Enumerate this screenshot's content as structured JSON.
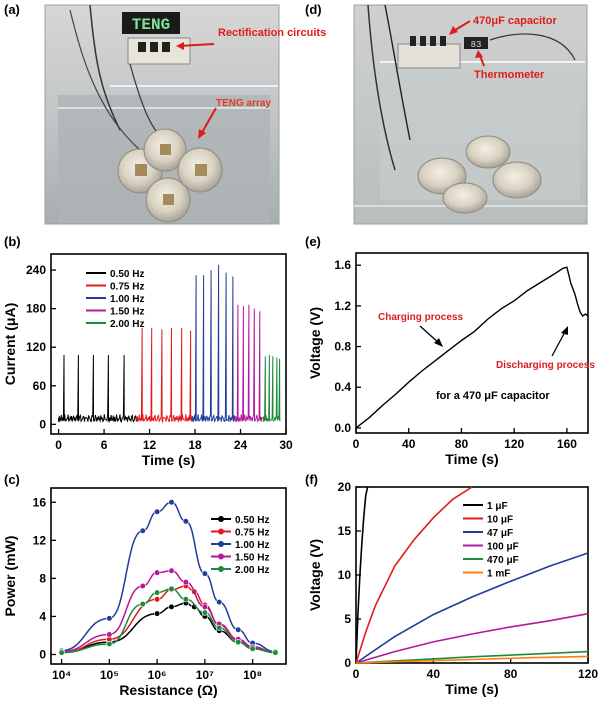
{
  "panels": {
    "a": {
      "label": "(a)",
      "annotations": [
        "Rectification circuits",
        "TENG array"
      ],
      "display_text": "TENG"
    },
    "d": {
      "label": "(d)",
      "annotations": [
        "470μF capacitor",
        "Thermometer"
      ],
      "display_text": "83"
    },
    "b": {
      "label": "(b)"
    },
    "c": {
      "label": "(c)"
    },
    "e": {
      "label": "(e)"
    },
    "f": {
      "label": "(f)"
    }
  },
  "chart_data": [
    {
      "id": "b",
      "type": "line",
      "title": "",
      "xlabel": "Time (s)",
      "ylabel": "Current (μA)",
      "xlim": [
        -1,
        30
      ],
      "ylim": [
        -15,
        265
      ],
      "xticks": [
        "0",
        "6",
        "12",
        "18",
        "24",
        "30"
      ],
      "yticks": [
        "0",
        "60",
        "120",
        "180",
        "240"
      ],
      "xtick_values": [
        0,
        6,
        12,
        18,
        24,
        30
      ],
      "ytick_values": [
        0,
        60,
        120,
        180,
        240
      ],
      "series": [
        {
          "name": "0.50 Hz",
          "color": "#000000",
          "t_start": 0.0,
          "t_end": 10.3,
          "peak_times": [
            0.7,
            2.6,
            4.6,
            6.6,
            8.6
          ],
          "peak_values": [
            108,
            108,
            108,
            108,
            108
          ]
        },
        {
          "name": "0.75 Hz",
          "color": "#e31a1c",
          "t_start": 10.3,
          "t_end": 17.6,
          "peak_times": [
            11.0,
            12.3,
            13.6,
            14.9,
            16.2,
            17.4
          ],
          "peak_values": [
            150,
            150,
            148,
            150,
            150,
            146
          ]
        },
        {
          "name": "1.00 Hz",
          "color": "#1f3d99",
          "t_start": 17.6,
          "t_end": 23.3,
          "peak_times": [
            18.1,
            19.1,
            20.1,
            21.1,
            22.1,
            23.0
          ],
          "peak_values": [
            232,
            232,
            240,
            248,
            236,
            230
          ]
        },
        {
          "name": "1.50 Hz",
          "color": "#b5179e",
          "t_start": 23.3,
          "t_end": 27.0,
          "peak_times": [
            23.7,
            24.4,
            25.1,
            25.8,
            26.5
          ],
          "peak_values": [
            186,
            184,
            186,
            180,
            176
          ]
        },
        {
          "name": "2.00 Hz",
          "color": "#1e8a3c",
          "t_start": 27.0,
          "t_end": 29.3,
          "peak_times": [
            27.3,
            27.8,
            28.3,
            28.8,
            29.2
          ],
          "peak_values": [
            106,
            108,
            106,
            104,
            102
          ]
        }
      ]
    },
    {
      "id": "c",
      "type": "line",
      "xscale": "log",
      "title": "",
      "xlabel": "Resistance (Ω)",
      "ylabel": "Power (mW)",
      "xlim": [
        6000,
        500000000
      ],
      "ylim": [
        -1,
        17.5
      ],
      "xticks": [
        "10⁴",
        "10⁵",
        "10⁶",
        "10⁷",
        "10⁸"
      ],
      "xtick_values": [
        10000,
        100000,
        1000000,
        10000000,
        100000000
      ],
      "yticks": [
        "0",
        "4",
        "8",
        "12",
        "16"
      ],
      "ytick_values": [
        0,
        4,
        8,
        12,
        16
      ],
      "series": [
        {
          "name": "0.50 Hz",
          "color": "#000000",
          "x": [
            10000,
            100000,
            1000000,
            2000000,
            4000000,
            6000000,
            10000000,
            20000000,
            50000000,
            100000000,
            300000000
          ],
          "y": [
            0.2,
            1.3,
            4.3,
            5.0,
            5.4,
            5.0,
            4.0,
            2.5,
            1.3,
            0.6,
            0.2
          ]
        },
        {
          "name": "0.75 Hz",
          "color": "#e31a1c",
          "x": [
            10000,
            100000,
            1000000,
            2000000,
            4000000,
            6000000,
            10000000,
            20000000,
            50000000,
            100000000,
            300000000
          ],
          "y": [
            0.2,
            1.6,
            5.8,
            6.8,
            7.2,
            6.6,
            5.2,
            3.1,
            1.5,
            0.7,
            0.2
          ]
        },
        {
          "name": "1.00 Hz",
          "color": "#1f3d99",
          "x": [
            10000,
            100000,
            500000,
            1000000,
            2000000,
            4000000,
            10000000,
            20000000,
            50000000,
            100000000,
            300000000
          ],
          "y": [
            0.4,
            3.8,
            13.0,
            15.0,
            16.0,
            14.0,
            8.5,
            5.5,
            2.6,
            1.2,
            0.3
          ]
        },
        {
          "name": "1.50 Hz",
          "color": "#b5179e",
          "x": [
            10000,
            100000,
            500000,
            1000000,
            2000000,
            4000000,
            10000000,
            20000000,
            50000000,
            100000000,
            300000000
          ],
          "y": [
            0.3,
            2.1,
            7.2,
            8.6,
            8.8,
            7.6,
            5.0,
            3.2,
            1.6,
            0.8,
            0.2
          ]
        },
        {
          "name": "2.00 Hz",
          "color": "#1e8a3c",
          "x": [
            10000,
            100000,
            500000,
            1000000,
            2000000,
            4000000,
            10000000,
            20000000,
            50000000,
            100000000,
            300000000
          ],
          "y": [
            0.2,
            1.1,
            5.3,
            6.5,
            6.9,
            5.8,
            4.4,
            2.8,
            1.3,
            0.6,
            0.2
          ]
        }
      ]
    },
    {
      "id": "e",
      "type": "line",
      "title": "",
      "xlabel": "Time (s)",
      "ylabel": "Voltage (V)",
      "xlim": [
        0,
        176
      ],
      "ylim": [
        -0.05,
        1.72
      ],
      "xticks": [
        "0",
        "40",
        "80",
        "120",
        "160"
      ],
      "xtick_values": [
        0,
        40,
        80,
        120,
        160
      ],
      "yticks": [
        "0.0",
        "0.4",
        "0.8",
        "1.2",
        "1.6"
      ],
      "ytick_values": [
        0,
        0.4,
        0.8,
        1.2,
        1.6
      ],
      "annotations": [
        "Charging process",
        "Discharging process"
      ],
      "note": "for a 470 μF capacitor",
      "series": [
        {
          "name": "470 μF",
          "color": "#000000",
          "x": [
            0,
            10,
            20,
            30,
            40,
            50,
            60,
            70,
            80,
            90,
            100,
            110,
            120,
            130,
            140,
            150,
            157,
            160,
            163,
            166,
            168,
            170,
            172,
            174,
            176
          ],
          "y": [
            0.0,
            0.1,
            0.22,
            0.33,
            0.45,
            0.56,
            0.66,
            0.76,
            0.86,
            0.95,
            1.07,
            1.17,
            1.25,
            1.35,
            1.43,
            1.51,
            1.57,
            1.58,
            1.42,
            1.32,
            1.22,
            1.14,
            1.1,
            1.12,
            1.1
          ]
        }
      ]
    },
    {
      "id": "f",
      "type": "line",
      "title": "",
      "xlabel": "Time (s)",
      "ylabel": "Voltage (V)",
      "xlim": [
        0,
        120
      ],
      "ylim": [
        0,
        20
      ],
      "xticks": [
        "0",
        "40",
        "80",
        "120"
      ],
      "xtick_values": [
        0,
        40,
        80,
        120
      ],
      "yticks": [
        "0",
        "5",
        "10",
        "15",
        "20"
      ],
      "ytick_values": [
        0,
        5,
        10,
        15,
        20
      ],
      "series": [
        {
          "name": "1 μF",
          "color": "#000000",
          "x": [
            0,
            1,
            2,
            3,
            4,
            5,
            6
          ],
          "y": [
            0,
            5.5,
            10,
            13.5,
            16.5,
            19,
            20
          ]
        },
        {
          "name": "10 μF",
          "color": "#e31a1c",
          "x": [
            0,
            5,
            10,
            20,
            30,
            40,
            50,
            60
          ],
          "y": [
            0,
            3.5,
            6.5,
            11,
            14,
            16.5,
            18.6,
            20
          ]
        },
        {
          "name": "47 μF",
          "color": "#1f3d99",
          "x": [
            0,
            20,
            40,
            60,
            80,
            100,
            120
          ],
          "y": [
            0,
            3.0,
            5.5,
            7.5,
            9.3,
            11.0,
            12.5
          ]
        },
        {
          "name": "100 μF",
          "color": "#b5179e",
          "x": [
            0,
            20,
            40,
            60,
            80,
            100,
            120
          ],
          "y": [
            0,
            1.3,
            2.4,
            3.3,
            4.1,
            4.8,
            5.6
          ]
        },
        {
          "name": "470 μF",
          "color": "#1e8a3c",
          "x": [
            0,
            30,
            60,
            90,
            120
          ],
          "y": [
            0,
            0.35,
            0.7,
            1.0,
            1.3
          ]
        },
        {
          "name": "1 mF",
          "color": "#ff7f0e",
          "x": [
            0,
            30,
            60,
            90,
            120
          ],
          "y": [
            0,
            0.2,
            0.4,
            0.6,
            0.75
          ]
        }
      ]
    }
  ]
}
